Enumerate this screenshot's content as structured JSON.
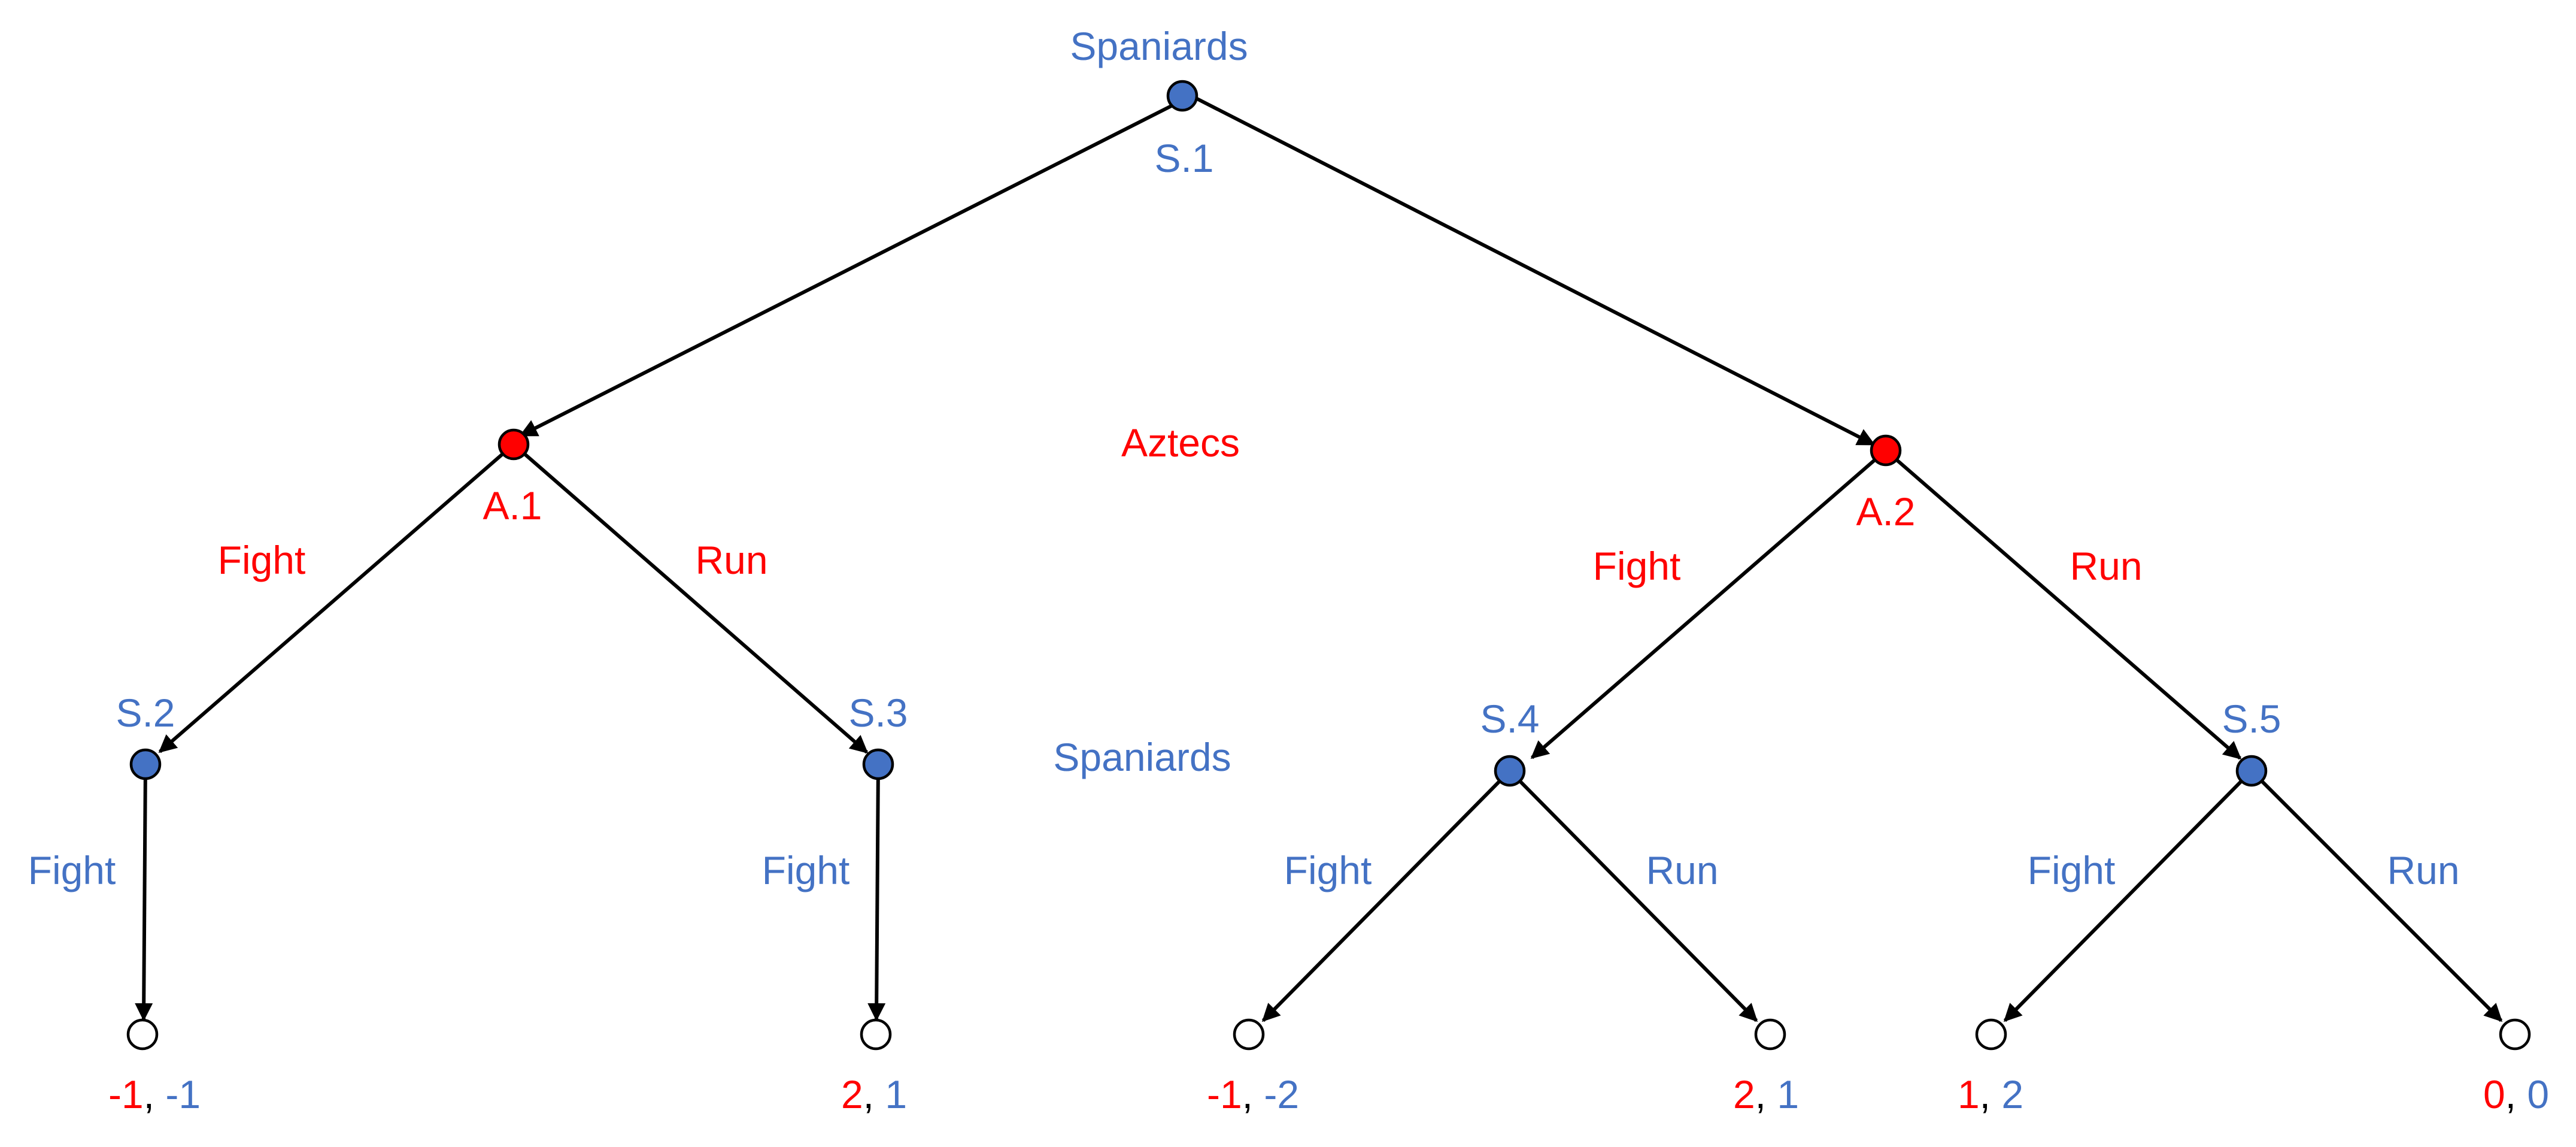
{
  "colors": {
    "spaniards": "#4472C4",
    "aztecs": "#FF0000",
    "edge": "#000000",
    "terminal_fill": "#FFFFFF"
  },
  "players": {
    "spaniards_top": "Spaniards",
    "aztecs": "Aztecs",
    "spaniards_bottom": "Spaniards"
  },
  "nodes": {
    "S1": {
      "label": "S.1",
      "player": "spaniards"
    },
    "A1": {
      "label": "A.1",
      "player": "aztecs"
    },
    "A2": {
      "label": "A.2",
      "player": "aztecs"
    },
    "S2": {
      "label": "S.2",
      "player": "spaniards"
    },
    "S3": {
      "label": "S.3",
      "player": "spaniards"
    },
    "S4": {
      "label": "S.4",
      "player": "spaniards"
    },
    "S5": {
      "label": "S.5",
      "player": "spaniards"
    }
  },
  "actions": {
    "A1_left": "Fight",
    "A1_right": "Run",
    "A2_left": "Fight",
    "A2_right": "Run",
    "S2_down": "Fight",
    "S3_down": "Fight",
    "S4_left": "Fight",
    "S4_right": "Run",
    "S5_left": "Fight",
    "S5_right": "Run"
  },
  "payoffs": [
    {
      "aztecs": "-1",
      "sep": ", ",
      "spaniards": "-1"
    },
    {
      "aztecs": "2",
      "sep": ", ",
      "spaniards": "1"
    },
    {
      "aztecs": "-1",
      "sep": ", ",
      "spaniards": "-2"
    },
    {
      "aztecs": "2",
      "sep": ", ",
      "spaniards": "1"
    },
    {
      "aztecs": "1",
      "sep": ", ",
      "spaniards": "2"
    },
    {
      "aztecs": "0",
      "sep": ", ",
      "spaniards": "0"
    }
  ]
}
